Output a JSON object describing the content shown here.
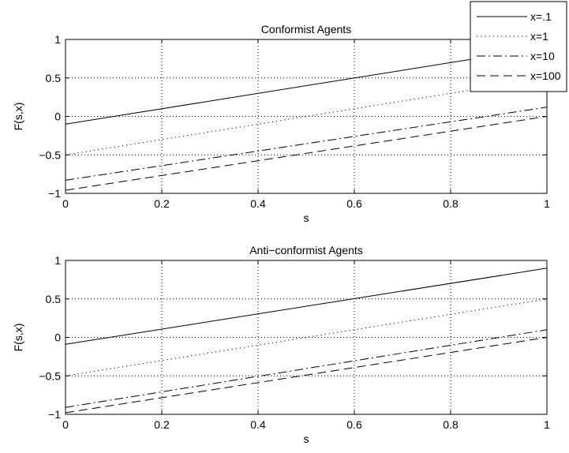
{
  "chart_data": [
    {
      "type": "line",
      "title": "Conformist Agents",
      "xlabel": "s",
      "ylabel": "F(s,x)",
      "xlim": [
        0,
        1
      ],
      "ylim": [
        -1,
        1
      ],
      "xticks": [
        0,
        0.2,
        0.4,
        0.6,
        0.8,
        1
      ],
      "xtick_labels": [
        "0",
        "0.2",
        "0.4",
        "0.6",
        "0.8",
        "1"
      ],
      "yticks": [
        -1,
        -0.5,
        0,
        0.5,
        1
      ],
      "ytick_labels": [
        "−1",
        "−0.5",
        "0",
        "0.5",
        "1"
      ],
      "grid": true,
      "legend_position": "top-right",
      "series": [
        {
          "name": "x=.1",
          "style": "solid",
          "x": [
            0,
            1
          ],
          "y": [
            -0.1,
            0.9
          ]
        },
        {
          "name": "x=1",
          "style": "dotted",
          "x": [
            0,
            1
          ],
          "y": [
            -0.5,
            0.5
          ]
        },
        {
          "name": "x=10",
          "style": "dashdot",
          "x": [
            0,
            1
          ],
          "y": [
            -0.83,
            0.12
          ]
        },
        {
          "name": "x=100",
          "style": "dashed",
          "x": [
            0,
            1
          ],
          "y": [
            -0.96,
            0.0
          ]
        }
      ]
    },
    {
      "type": "line",
      "title": "Anti−conformist Agents",
      "xlabel": "s",
      "ylabel": "F(s,x)",
      "xlim": [
        0,
        1
      ],
      "ylim": [
        -1,
        1
      ],
      "xticks": [
        0,
        0.2,
        0.4,
        0.6,
        0.8,
        1
      ],
      "xtick_labels": [
        "0",
        "0.2",
        "0.4",
        "0.6",
        "0.8",
        "1"
      ],
      "yticks": [
        -1,
        -0.5,
        0,
        0.5,
        1
      ],
      "ytick_labels": [
        "−1",
        "−0.5",
        "0",
        "0.5",
        "1"
      ],
      "grid": true,
      "series": [
        {
          "style": "solid",
          "x": [
            0,
            1
          ],
          "y": [
            -0.09,
            0.9
          ]
        },
        {
          "style": "dotted",
          "x": [
            0,
            1
          ],
          "y": [
            -0.5,
            0.5
          ]
        },
        {
          "style": "dashdot",
          "x": [
            0,
            1
          ],
          "y": [
            -0.91,
            0.1
          ]
        },
        {
          "style": "dashed",
          "x": [
            0,
            1
          ],
          "y": [
            -0.98,
            0.0
          ]
        }
      ]
    }
  ]
}
